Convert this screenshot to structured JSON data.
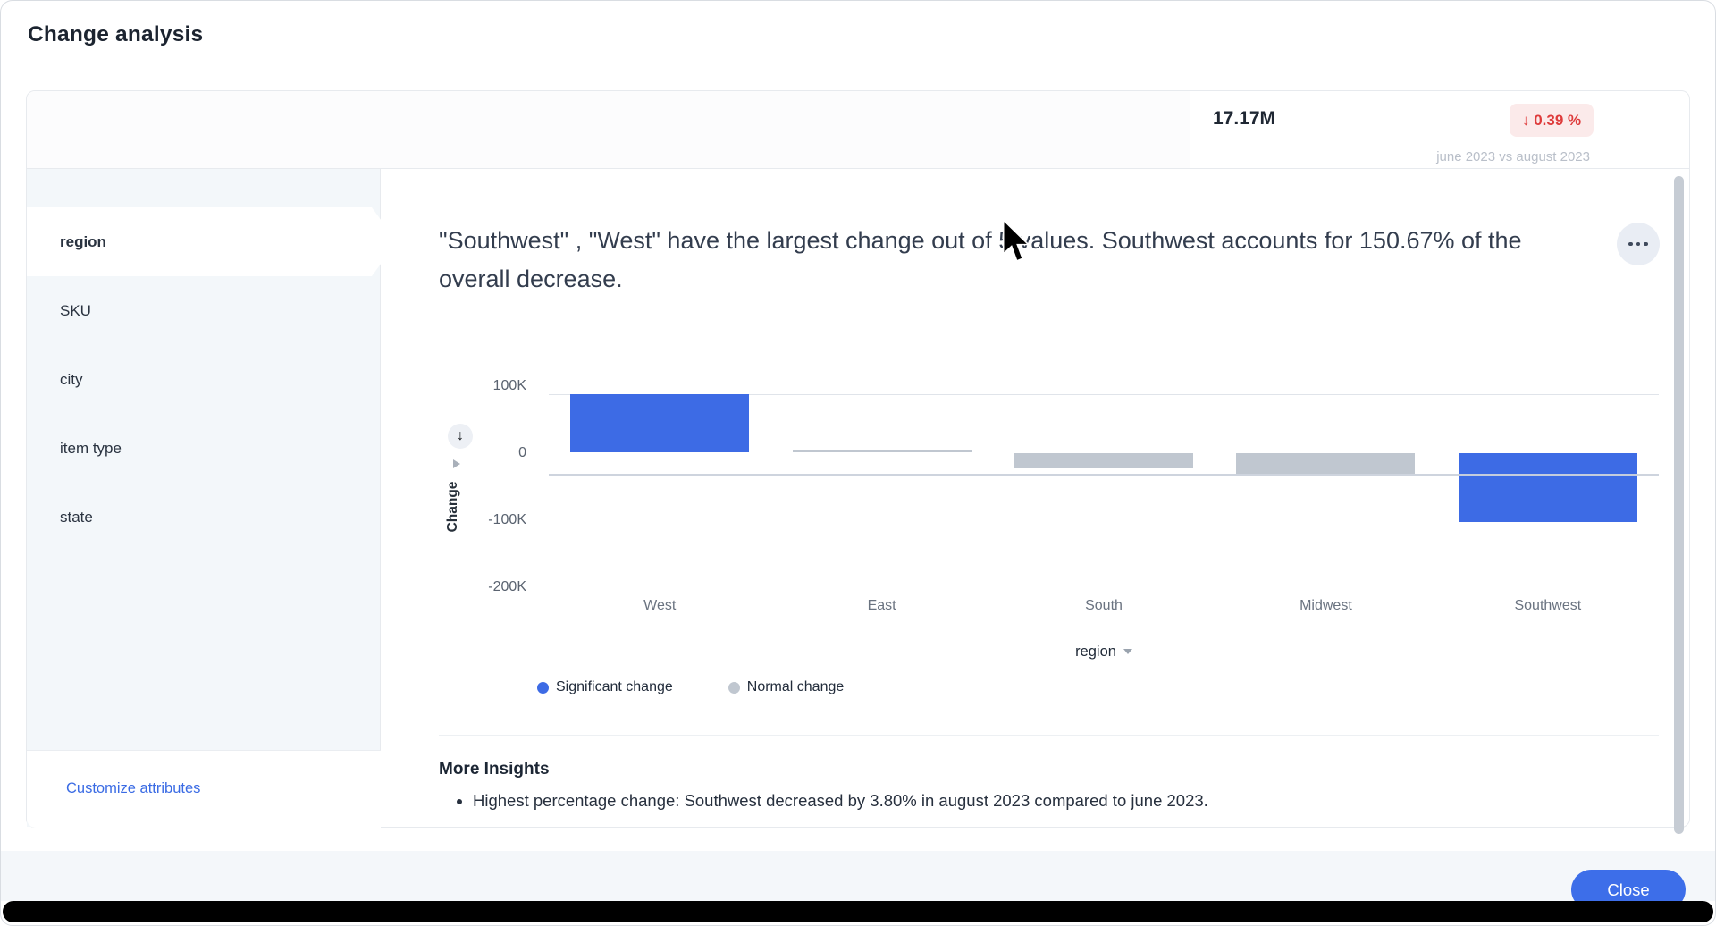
{
  "page": {
    "title": "Change analysis"
  },
  "summary": {
    "value": "17.17M",
    "change_badge": "↓ 0.39 %",
    "period": "june 2023 vs august 2023"
  },
  "sidebar": {
    "items": [
      {
        "label": "region",
        "selected": true
      },
      {
        "label": "SKU",
        "selected": false
      },
      {
        "label": "city",
        "selected": false
      },
      {
        "label": "item type",
        "selected": false
      },
      {
        "label": "state",
        "selected": false
      }
    ],
    "customize_label": "Customize attributes"
  },
  "insight": {
    "text": "\"Southwest\" , \"West\" have the largest change out of 5 values. Southwest accounts for 150.67% of the overall decrease."
  },
  "chart_data": {
    "type": "bar",
    "categories": [
      "West",
      "East",
      "South",
      "Midwest",
      "Southwest"
    ],
    "values": [
      86000,
      4000,
      -22000,
      -31000,
      -102000
    ],
    "significance": [
      "significant",
      "normal",
      "normal",
      "normal",
      "significant"
    ],
    "title": "",
    "xlabel": "region",
    "ylabel": "Change",
    "y_ticks": [
      "100K",
      "0",
      "-100K",
      "-200K"
    ],
    "ylim": [
      -200000,
      100000
    ],
    "grid": "single-line-at-100K",
    "legend_position": "bottom-left",
    "legend": [
      {
        "label": "Significant change",
        "color": "#3D6BE5"
      },
      {
        "label": "Normal change",
        "color": "#C0C7D0"
      }
    ]
  },
  "more_insights": {
    "heading": "More Insights",
    "bullets": [
      "Highest percentage change: Southwest decreased by 3.80% in august 2023 compared to june 2023."
    ]
  },
  "footer": {
    "close_label": "Close"
  },
  "colors": {
    "significant": "#3D6BE5",
    "normal": "#C0C7D0",
    "badge_bg": "#FBEAEA",
    "badge_text": "#DE3B3B",
    "link": "#3A6BE4"
  }
}
